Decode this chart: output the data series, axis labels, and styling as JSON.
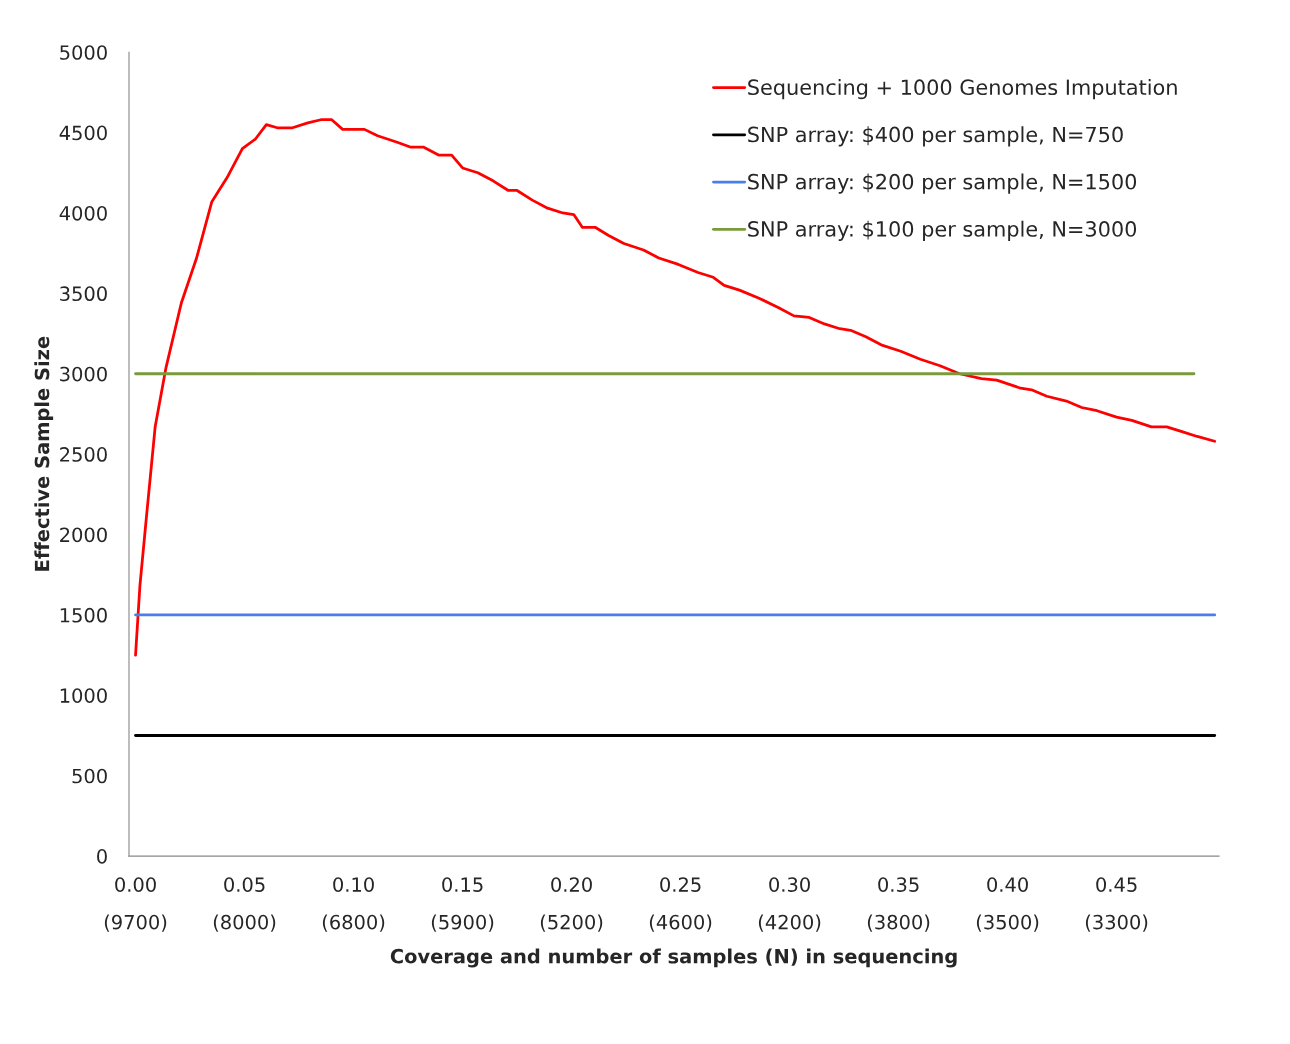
{
  "chart_data": {
    "type": "line",
    "xlabel": "Coverage and number of samples (N) in sequencing",
    "ylabel": "Effective Sample Size",
    "xlim": [
      -0.003,
      0.497
    ],
    "xticks": [
      {
        "value": 0,
        "label": "0.00"
      },
      {
        "value": 0.05,
        "label": "0.05"
      },
      {
        "value": 0.1,
        "label": "0.10"
      },
      {
        "value": 0.15,
        "label": "0.15"
      },
      {
        "value": 0.2,
        "label": "0.20"
      },
      {
        "value": 0.25,
        "label": "0.25"
      },
      {
        "value": 0.3,
        "label": "0.30"
      },
      {
        "value": 0.35,
        "label": "0.35"
      },
      {
        "value": 0.4,
        "label": "0.40"
      },
      {
        "value": 0.45,
        "label": "0.45"
      }
    ],
    "annotations": [
      "(9700)",
      "(8000)",
      "(6800)",
      "(5900)",
      "(5200)",
      "(4600)",
      "(4200)",
      "(3800)",
      "(3500)",
      "(3300)"
    ],
    "ylim": [
      0,
      5000
    ],
    "yticks": [
      0,
      500,
      1000,
      1500,
      2000,
      2500,
      3000,
      3500,
      4000,
      4500,
      5000
    ],
    "grid": false,
    "legend": "top right",
    "marker": "none",
    "line_style": "solid",
    "series": [
      {
        "name": "Sequencing + 1000 Genomes Imputation",
        "color": "#ff0000",
        "x": [
          0.0,
          0.002,
          0.005,
          0.009,
          0.014,
          0.021,
          0.028,
          0.035,
          0.042,
          0.049,
          0.055,
          0.06,
          0.065,
          0.072,
          0.079,
          0.085,
          0.09,
          0.095,
          0.105,
          0.111,
          0.12,
          0.126,
          0.132,
          0.139,
          0.145,
          0.15,
          0.157,
          0.164,
          0.171,
          0.175,
          0.182,
          0.189,
          0.196,
          0.201,
          0.205,
          0.211,
          0.217,
          0.224,
          0.233,
          0.24,
          0.249,
          0.258,
          0.265,
          0.27,
          0.277,
          0.286,
          0.295,
          0.302,
          0.309,
          0.316,
          0.323,
          0.328,
          0.335,
          0.342,
          0.351,
          0.36,
          0.369,
          0.378,
          0.388,
          0.395,
          0.406,
          0.411,
          0.418,
          0.427,
          0.434,
          0.441,
          0.45,
          0.457,
          0.466,
          0.473,
          0.48,
          0.487,
          0.495
        ],
        "values": [
          1250,
          1680,
          2110,
          2670,
          3040,
          3440,
          3720,
          4070,
          4220,
          4400,
          4460,
          4550,
          4530,
          4530,
          4560,
          4580,
          4580,
          4520,
          4520,
          4480,
          4440,
          4410,
          4410,
          4360,
          4360,
          4280,
          4250,
          4200,
          4140,
          4140,
          4080,
          4030,
          4000,
          3990,
          3910,
          3910,
          3860,
          3810,
          3770,
          3720,
          3680,
          3630,
          3600,
          3550,
          3520,
          3470,
          3410,
          3360,
          3350,
          3310,
          3280,
          3270,
          3230,
          3180,
          3140,
          3090,
          3050,
          3000,
          2970,
          2960,
          2910,
          2900,
          2860,
          2830,
          2790,
          2770,
          2730,
          2710,
          2670,
          2670,
          2640,
          2610,
          2580
        ]
      },
      {
        "name": "SNP array: $400 per sample, N=750",
        "color": "#000000",
        "x": [
          0.0,
          0.495
        ],
        "values": [
          750,
          750
        ]
      },
      {
        "name": "SNP array: $200 per sample, N=1500",
        "color": "#4a7ee8",
        "x": [
          0.0,
          0.495
        ],
        "values": [
          1500,
          1500
        ]
      },
      {
        "name": "SNP array: $100 per sample, N=3000",
        "color": "#7a9a3c",
        "x": [
          0.0,
          0.4855
        ],
        "values": [
          3000,
          3000
        ]
      }
    ]
  }
}
